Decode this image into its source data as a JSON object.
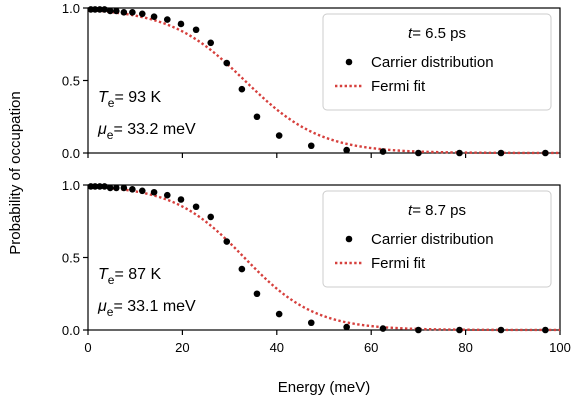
{
  "chart_data": {
    "type": "scatter",
    "xlabel": "Energy (meV)",
    "ylabel": "Probability of occupation",
    "xlim": [
      0,
      100
    ],
    "ylim": [
      0,
      1
    ],
    "x_ticks": [
      "0",
      "20",
      "40",
      "60",
      "80",
      "100"
    ],
    "y_ticks": [
      "0.0",
      "0.5",
      "1.0"
    ],
    "colors": {
      "points": "#000000",
      "fit": "#d6403d",
      "legend_border": "#cccccc"
    },
    "legend": {
      "placement": "top-right",
      "entries": [
        "Carrier distribution",
        "Fermi fit"
      ]
    },
    "panels": [
      {
        "time_var": "t",
        "time_label": "= 6.5 ps",
        "te_sym": "T",
        "te_sub": "e",
        "te_val": "= 93 K",
        "mu_sym": "μ",
        "mu_sub": "e",
        "mu_val": "= 33.2 meV",
        "T_K": 93,
        "mu_meV": 33.2,
        "series": [
          {
            "name": "Carrier distribution",
            "x": [
              0.6,
              1.5,
              2.5,
              3.5,
              4.7,
              6.0,
              7.6,
              9.4,
              11.5,
              14.0,
              16.8,
              19.7,
              22.9,
              26.0,
              29.4,
              32.6,
              35.8,
              40.5,
              47.3,
              54.8,
              62.5,
              70.0,
              78.7,
              87.5,
              96.9
            ],
            "y": [
              0.99,
              0.99,
              0.99,
              0.99,
              0.98,
              0.98,
              0.97,
              0.97,
              0.96,
              0.94,
              0.92,
              0.89,
              0.85,
              0.76,
              0.62,
              0.44,
              0.25,
              0.12,
              0.05,
              0.02,
              0.01,
              0.0,
              0.0,
              0.0,
              0.0
            ]
          },
          {
            "name": "Fermi fit",
            "style": "dotted"
          }
        ]
      },
      {
        "time_var": "t",
        "time_label": "= 8.7 ps",
        "te_sym": "T",
        "te_sub": "e",
        "te_val": "= 87 K",
        "mu_sym": "μ",
        "mu_sub": "e",
        "mu_val": "= 33.1 meV",
        "T_K": 87,
        "mu_meV": 33.1,
        "series": [
          {
            "name": "Carrier distribution",
            "x": [
              0.6,
              1.5,
              2.5,
              3.5,
              4.7,
              6.0,
              7.6,
              9.4,
              11.5,
              14.0,
              16.8,
              19.7,
              22.9,
              26.0,
              29.4,
              32.6,
              35.8,
              40.5,
              47.3,
              54.8,
              62.5,
              70.0,
              78.7,
              87.5,
              96.9
            ],
            "y": [
              0.99,
              0.99,
              0.99,
              0.99,
              0.98,
              0.98,
              0.98,
              0.97,
              0.96,
              0.95,
              0.93,
              0.9,
              0.85,
              0.78,
              0.61,
              0.42,
              0.25,
              0.11,
              0.05,
              0.02,
              0.01,
              0.0,
              0.0,
              0.0,
              0.0
            ]
          },
          {
            "name": "Fermi fit",
            "style": "dotted"
          }
        ]
      }
    ]
  }
}
